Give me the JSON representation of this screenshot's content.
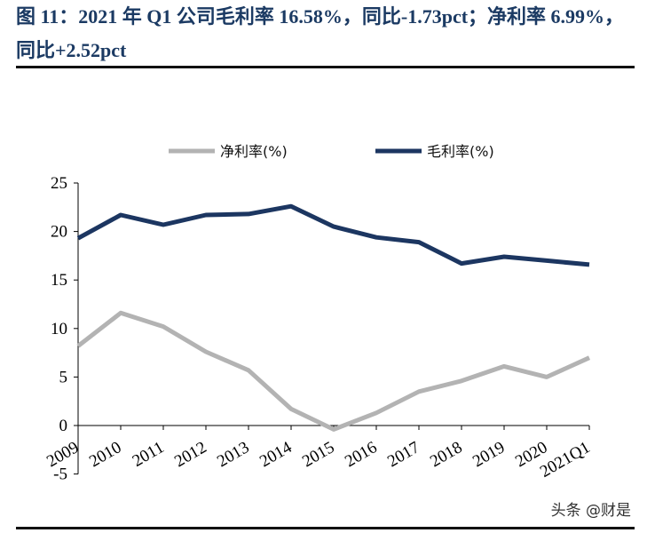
{
  "figure": {
    "title": "图 11：2021 年 Q1 公司毛利率 16.58%，同比-1.73pct；净利率 6.99%，同比+2.52pct"
  },
  "watermark": "头条 @财是",
  "chart_data": {
    "type": "line",
    "title": "",
    "xlabel": "",
    "ylabel": "",
    "categories": [
      "2009",
      "2010",
      "2011",
      "2012",
      "2013",
      "2014",
      "2015",
      "2016",
      "2017",
      "2018",
      "2019",
      "2020",
      "2021Q1"
    ],
    "ylim": [
      -5,
      25
    ],
    "yticks": [
      -5,
      0,
      5,
      10,
      15,
      20,
      25
    ],
    "grid": false,
    "legend_position": "top",
    "series": [
      {
        "name": "净利率(%)",
        "color": "#b3b3b3",
        "values": [
          8.2,
          11.6,
          10.2,
          7.6,
          5.7,
          1.7,
          -0.4,
          1.3,
          3.5,
          4.6,
          6.1,
          5.0,
          6.99
        ]
      },
      {
        "name": "毛利率(%)",
        "color": "#1c3661",
        "values": [
          19.3,
          21.7,
          20.7,
          21.7,
          21.8,
          22.6,
          20.5,
          19.4,
          18.9,
          16.7,
          17.4,
          17.0,
          16.58
        ]
      }
    ]
  }
}
